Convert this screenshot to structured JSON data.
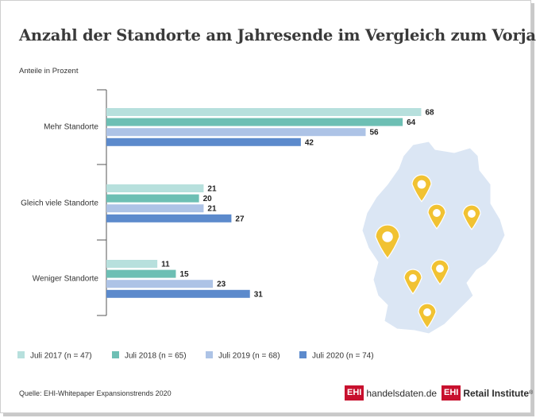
{
  "title": "Anzahl der Standorte am Jahresende im Vergleich zum Vorjahr",
  "subtitle": "Anteile in Prozent",
  "source": "Quelle: EHI-Whitepaper Expansionstrends 2020",
  "logos": {
    "left_box": "EHI",
    "left_text": "handelsdaten.de",
    "right_box": "EHI",
    "right_text": "Retail Institute",
    "right_mark": "®"
  },
  "colors": {
    "map": "#dbe6f4",
    "pin": "#f1c232",
    "frame": "#cfcfcf"
  },
  "chart_data": {
    "type": "bar",
    "orientation": "horizontal",
    "categories": [
      "Mehr Standorte",
      "Gleich viele Standorte",
      "Weniger Standorte"
    ],
    "series": [
      {
        "name": "Juli 2017 (n = 47)",
        "color": "#b7e0dd",
        "values": [
          68,
          21,
          11
        ]
      },
      {
        "name": "Juli 2018 (n = 65)",
        "color": "#6dbfb4",
        "values": [
          64,
          20,
          15
        ]
      },
      {
        "name": "Juli 2019 (n = 68)",
        "color": "#adc3e6",
        "values": [
          56,
          21,
          23
        ]
      },
      {
        "name": "Juli 2020 (n = 74)",
        "color": "#5c8acc",
        "values": [
          42,
          27,
          31
        ]
      }
    ],
    "xlim": [
      0,
      100
    ],
    "grid": false,
    "legend_position": "bottom",
    "decoration": "Germany map with location pins"
  }
}
